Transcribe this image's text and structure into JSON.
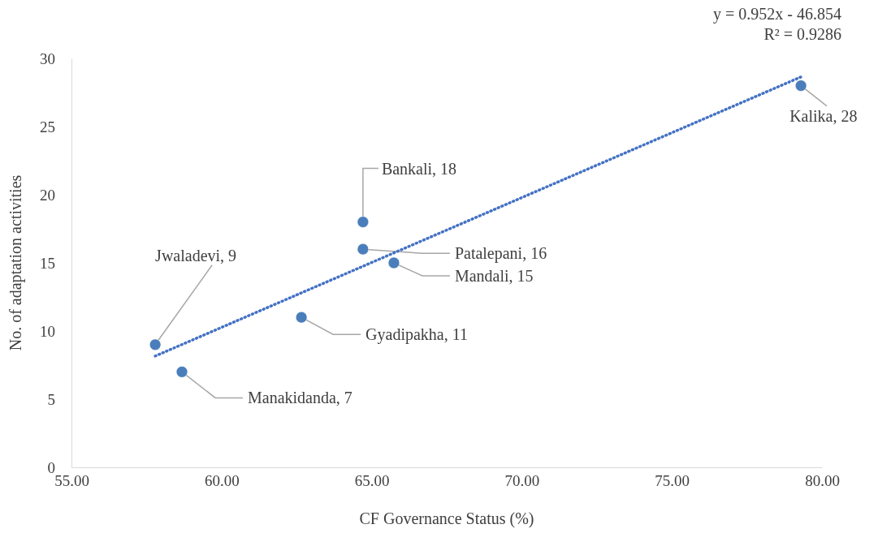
{
  "chart_data": {
    "type": "scatter",
    "xlabel": "CF Governance Status (%)",
    "ylabel": "No. of adaptation activities",
    "xlim": [
      55,
      80
    ],
    "xticks": [
      {
        "value": 55,
        "label": "55.00"
      },
      {
        "value": 60,
        "label": "60.00"
      },
      {
        "value": 65,
        "label": "65.00"
      },
      {
        "value": 70,
        "label": "70.00"
      },
      {
        "value": 75,
        "label": "75.00"
      },
      {
        "value": 80,
        "label": "80.00"
      }
    ],
    "ylim": [
      0,
      30
    ],
    "yticks": [
      0,
      5,
      10,
      15,
      20,
      25,
      30
    ],
    "grid": false,
    "marker": "circle",
    "series": [
      {
        "color": "#4a7ebb",
        "x": [
          57.79,
          58.68,
          62.66,
          64.71,
          64.71,
          65.74,
          79.3
        ],
        "values": [
          9,
          7,
          11,
          18,
          16,
          15,
          28
        ]
      },
      {
        "type": "line",
        "color": "#4472c4",
        "line_style": "dotted",
        "marker": "none",
        "x": [
          57.79,
          79.3
        ],
        "values": [
          8.16,
          28.64
        ]
      }
    ],
    "annotations": [
      {
        "text": "Jwaladevi, 9",
        "x": 57.79,
        "y": 9
      },
      {
        "text": "Manakidanda, 7",
        "x": 58.68,
        "y": 7
      },
      {
        "text": "Gyadipakha, 11",
        "x": 62.66,
        "y": 11
      },
      {
        "text": "Bankali, 18",
        "x": 64.71,
        "y": 18
      },
      {
        "text": "Patalepani, 16",
        "x": 64.71,
        "y": 16
      },
      {
        "text": "Mandali, 15",
        "x": 65.74,
        "y": 15
      },
      {
        "text": "Kalika, 28",
        "x": 79.3,
        "y": 28
      },
      "y = 0.952x - 46.854",
      "R² = 0.9286"
    ]
  }
}
